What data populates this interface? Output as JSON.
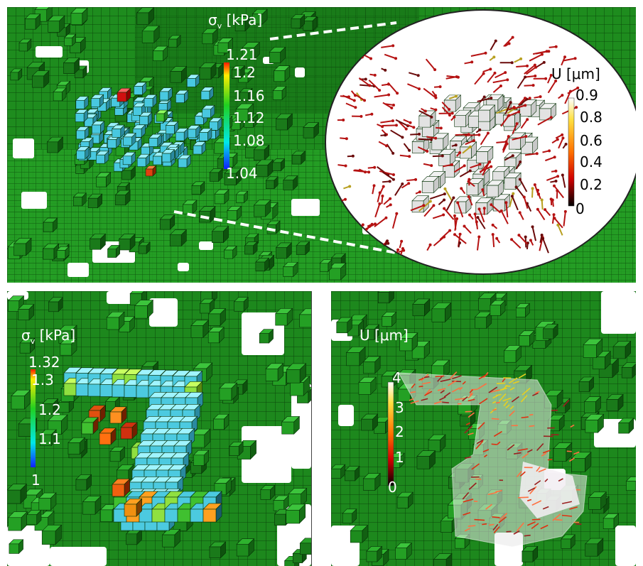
{
  "top_panel": {
    "stress_colorbar": {
      "title_symbol": "σ",
      "title_sub": "v",
      "title_unit": "[kPa]",
      "ticks": [
        "1.21",
        "1.2",
        "1.16",
        "1.12",
        "1.08",
        "1.04"
      ],
      "colors": [
        "#ff1a00",
        "#ffee00",
        "#20d020",
        "#00e8e8",
        "#1020ff"
      ]
    },
    "inset": {
      "colorbar": {
        "title": "U [μm]",
        "ticks": [
          "0.9",
          "0.8",
          "0.6",
          "0.4",
          "0.2",
          "0"
        ],
        "colors": [
          "#ffffff",
          "#ffe040",
          "#ff7000",
          "#d00000",
          "#000000"
        ]
      }
    }
  },
  "bottom_left_panel": {
    "colorbar": {
      "title_symbol": "σ",
      "title_sub": "v",
      "title_unit": "[kPa]",
      "ticks": [
        "1.32",
        "1.3",
        "1.2",
        "1.1",
        "1"
      ],
      "colors": [
        "#ff1a00",
        "#ffee00",
        "#20d020",
        "#00e8e8",
        "#1020ff"
      ]
    }
  },
  "bottom_right_panel": {
    "colorbar": {
      "title": "U [μm]",
      "ticks": [
        "4",
        "3",
        "2",
        "1",
        "0"
      ],
      "colors": [
        "#ffffff",
        "#ffe040",
        "#ff7000",
        "#d00000",
        "#000000"
      ]
    }
  },
  "palette": {
    "voxel_green": "#1f8a1f",
    "voxel_green_dark": "#0f5a0f",
    "voxel_cyan": "#48c8e0",
    "arrow_red": "#b01010",
    "arrow_yellow": "#c8b020"
  }
}
